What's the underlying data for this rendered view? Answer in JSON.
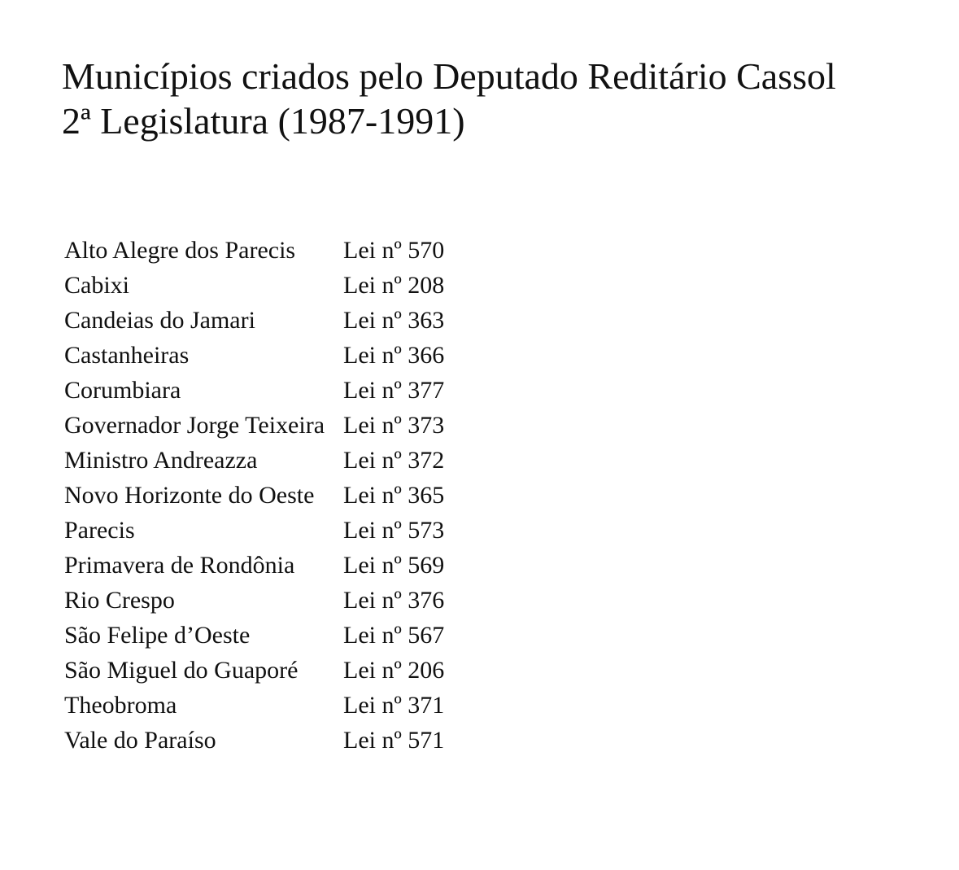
{
  "title": {
    "line1": "Municípios criados pelo Deputado Reditário Cassol",
    "line2": "2ª Legislatura (1987-1991)"
  },
  "rows": [
    {
      "name": "Alto Alegre dos Parecis",
      "law": "Lei nº 570"
    },
    {
      "name": "Cabixi",
      "law": "Lei nº 208"
    },
    {
      "name": "Candeias do Jamari",
      "law": "Lei nº 363"
    },
    {
      "name": "Castanheiras",
      "law": "Lei nº 366"
    },
    {
      "name": "Corumbiara",
      "law": "Lei nº 377"
    },
    {
      "name": "Governador Jorge Teixeira",
      "law": "Lei nº 373"
    },
    {
      "name": "Ministro Andreazza",
      "law": "Lei nº 372"
    },
    {
      "name": "Novo Horizonte do Oeste",
      "law": "Lei nº 365"
    },
    {
      "name": "Parecis",
      "law": "Lei nº 573"
    },
    {
      "name": "Primavera de Rondônia",
      "law": "Lei nº 569"
    },
    {
      "name": "Rio Crespo",
      "law": "Lei nº 376"
    },
    {
      "name": "São Felipe d’Oeste",
      "law": "Lei nº 567"
    },
    {
      "name": "São Miguel do Guaporé",
      "law": "Lei nº 206"
    },
    {
      "name": "Theobroma",
      "law": "Lei nº 371"
    },
    {
      "name": "Vale do Paraíso",
      "law": "Lei nº 571"
    }
  ]
}
